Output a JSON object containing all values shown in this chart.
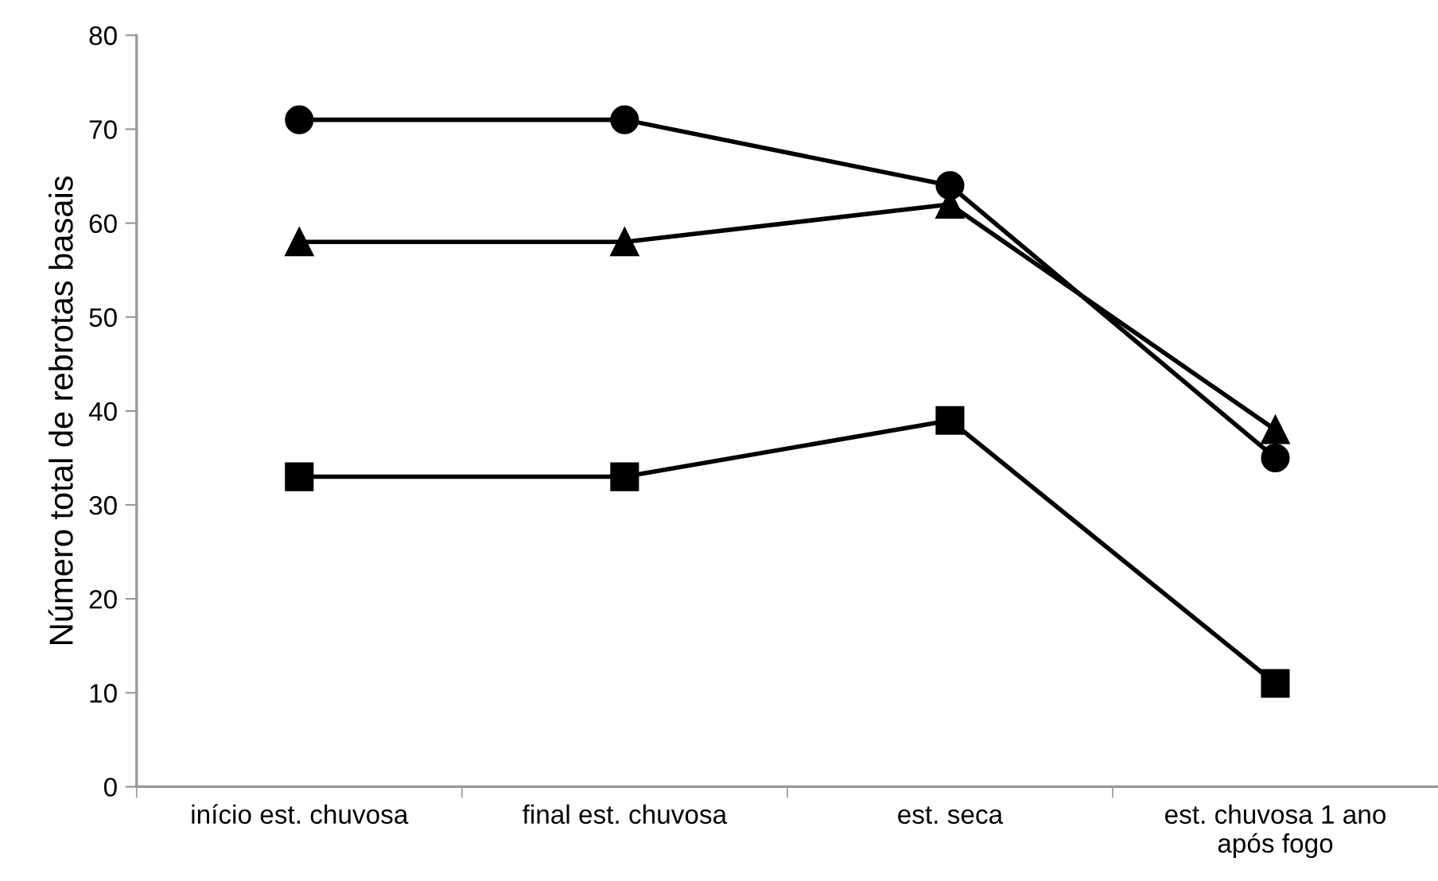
{
  "chart_data": {
    "type": "line",
    "ylabel": "Número total de rebrotas basais",
    "categories": [
      "início est. chuvosa",
      "final est. chuvosa",
      "est. seca",
      "est. chuvosa 1 ano\napós fogo"
    ],
    "series": [
      {
        "color": "#000000",
        "marker": "circle",
        "values": [
          71,
          71,
          64,
          35
        ]
      },
      {
        "color": "#000000",
        "marker": "triangle",
        "values": [
          58,
          58,
          62,
          38
        ]
      },
      {
        "color": "#000000",
        "marker": "square",
        "values": [
          33,
          33,
          39,
          11
        ]
      }
    ],
    "ylim": [
      0,
      80
    ],
    "yticks": [
      0,
      10,
      20,
      30,
      40,
      50,
      60,
      70,
      80
    ],
    "grid": false,
    "legend": false,
    "line_style": "solid"
  }
}
